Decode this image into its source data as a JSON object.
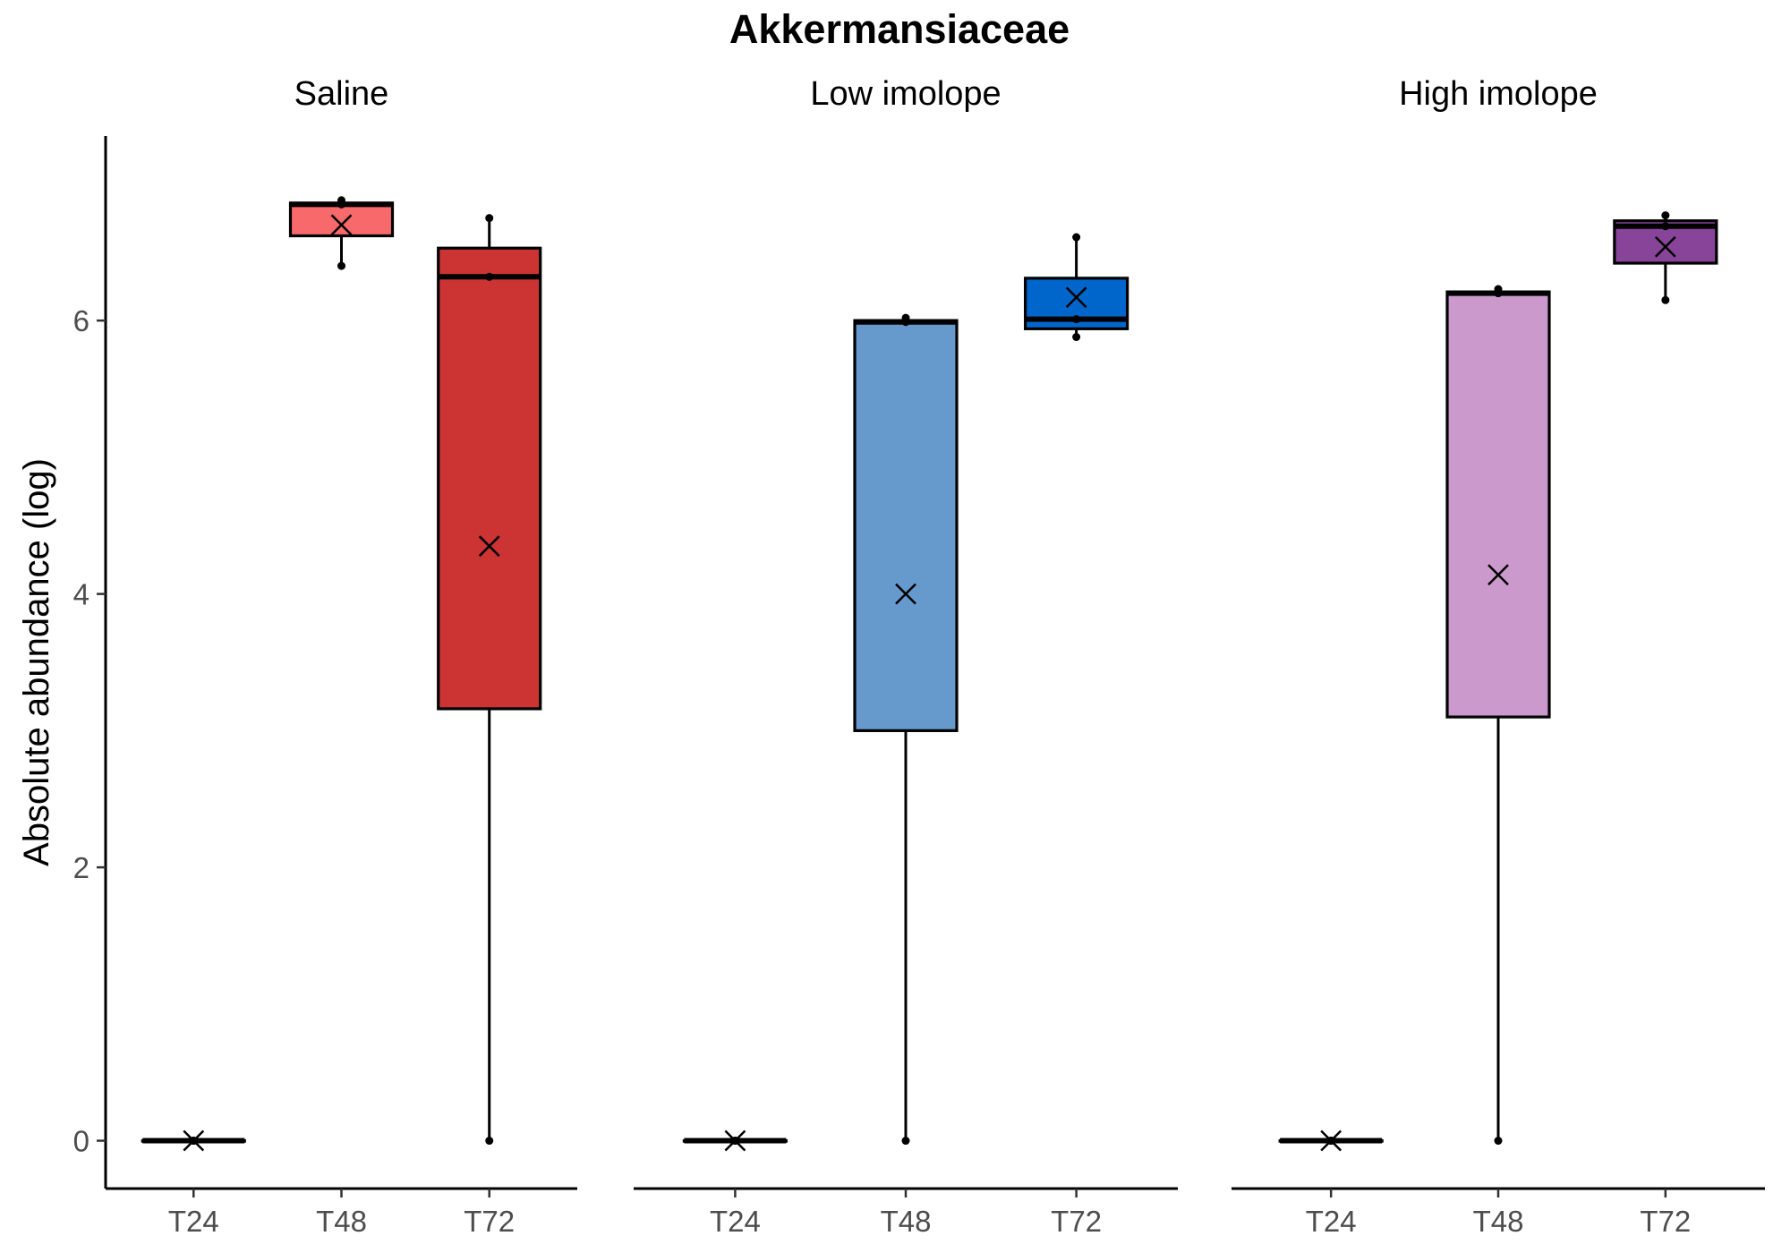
{
  "chart_data": {
    "type": "boxplot",
    "title": "Akkermansiaceae",
    "ylabel": "Absolute abundance (log)",
    "xlabel": "",
    "ylim": [
      -0.35,
      7.35
    ],
    "yticks": [
      0,
      2,
      4,
      6
    ],
    "categories": [
      "T24",
      "T48",
      "T72"
    ],
    "grid": false,
    "legend": "none",
    "mean_marker": "x",
    "panels": [
      {
        "name": "Saline",
        "boxes": [
          {
            "x": "T24",
            "fill": "#000000",
            "min": 0,
            "q1": 0,
            "median": 0,
            "q3": 0,
            "max": 0,
            "mean": 0,
            "points": [
              0,
              0,
              0
            ]
          },
          {
            "x": "T48",
            "fill": "#f8696b",
            "min": 6.4,
            "q1": 6.62,
            "median": 6.85,
            "q3": 6.86,
            "max": 6.88,
            "mean": 6.7,
            "points": [
              6.4,
              6.85,
              6.88
            ]
          },
          {
            "x": "T72",
            "fill": "#cc3333",
            "min": 0,
            "q1": 3.16,
            "median": 6.32,
            "q3": 6.53,
            "max": 6.75,
            "mean": 4.35,
            "points": [
              0,
              6.32,
              6.75
            ]
          }
        ]
      },
      {
        "name": "Low imolope",
        "boxes": [
          {
            "x": "T24",
            "fill": "#000000",
            "min": 0,
            "q1": 0,
            "median": 0,
            "q3": 0,
            "max": 0,
            "mean": 0,
            "points": [
              0,
              0,
              0
            ]
          },
          {
            "x": "T48",
            "fill": "#6699cc",
            "min": 0,
            "q1": 3.0,
            "median": 5.99,
            "q3": 6.0,
            "max": 6.02,
            "mean": 4.0,
            "points": [
              0,
              5.99,
              6.02
            ]
          },
          {
            "x": "T72",
            "fill": "#0066cc",
            "min": 5.88,
            "q1": 5.94,
            "median": 6.01,
            "q3": 6.31,
            "max": 6.61,
            "mean": 6.17,
            "points": [
              5.88,
              6.01,
              6.61
            ]
          }
        ]
      },
      {
        "name": "High imolope",
        "boxes": [
          {
            "x": "T24",
            "fill": "#000000",
            "min": 0,
            "q1": 0,
            "median": 0,
            "q3": 0,
            "max": 0,
            "mean": 0,
            "points": [
              0,
              0,
              0
            ]
          },
          {
            "x": "T48",
            "fill": "#cc99cc",
            "min": 0,
            "q1": 3.1,
            "median": 6.2,
            "q3": 6.21,
            "max": 6.23,
            "mean": 4.14,
            "points": [
              0,
              6.2,
              6.23
            ]
          },
          {
            "x": "T72",
            "fill": "#884499",
            "min": 6.15,
            "q1": 6.42,
            "median": 6.69,
            "q3": 6.73,
            "max": 6.77,
            "mean": 6.54,
            "points": [
              6.15,
              6.69,
              6.77
            ]
          }
        ]
      }
    ]
  }
}
